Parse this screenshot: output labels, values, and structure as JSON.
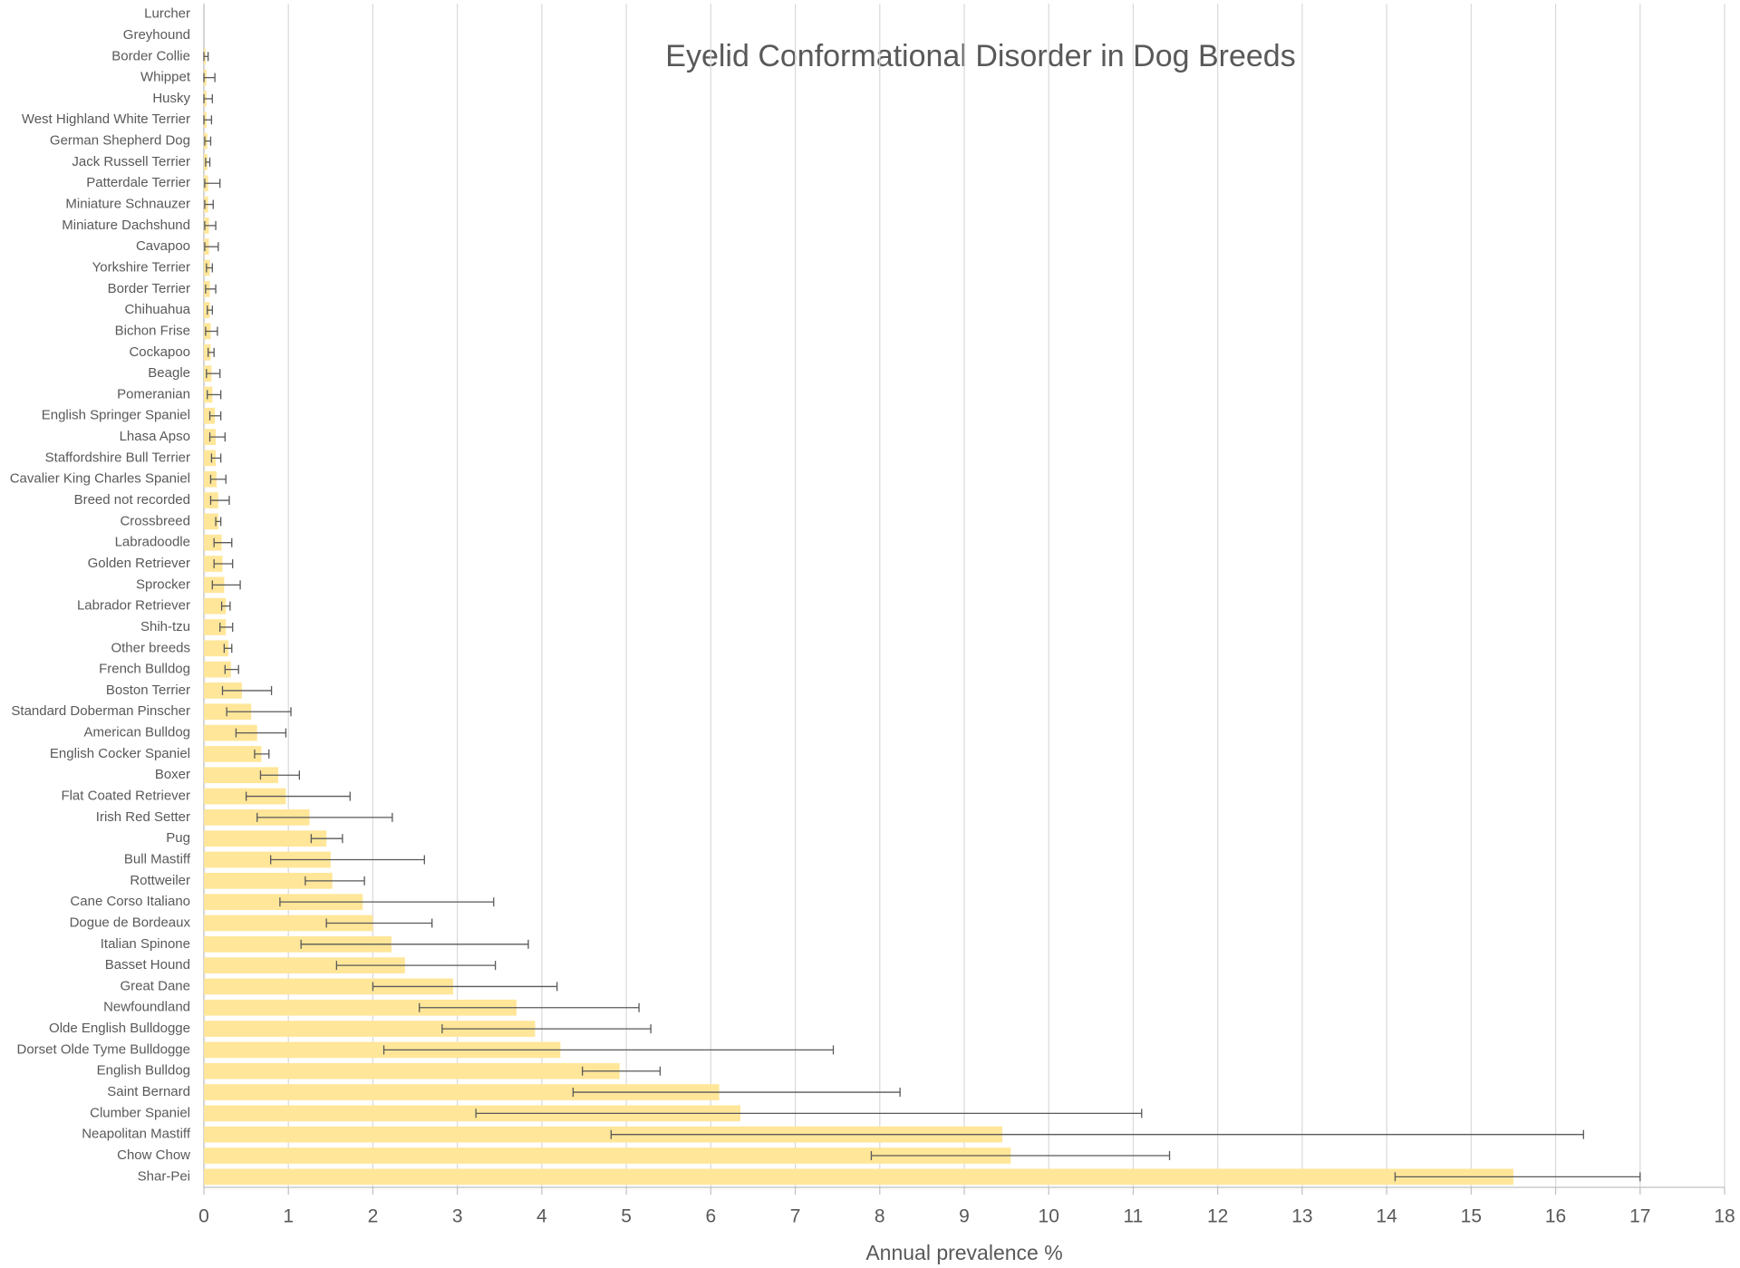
{
  "chart_data": {
    "type": "hbar",
    "title": "Eyelid Conformational Disorder in Dog Breeds",
    "x_label": "Annual prevalence %",
    "categories": [
      "Lurcher",
      "Greyhound",
      "Border Collie",
      "Whippet",
      "Husky",
      "West Highland White Terrier",
      "German Shepherd Dog",
      "Jack Russell Terrier",
      "Patterdale Terrier",
      "Miniature Schnauzer",
      "Miniature Dachshund",
      "Cavapoo",
      "Yorkshire Terrier",
      "Border Terrier",
      "Chihuahua",
      "Bichon Frise",
      "Cockapoo",
      "Beagle",
      "Pomeranian",
      "English Springer Spaniel",
      "Lhasa Apso",
      "Staffordshire Bull Terrier",
      "Cavalier King Charles Spaniel",
      "Breed not recorded",
      "Crossbreed",
      "Labradoodle",
      "Golden Retriever",
      "Sprocker",
      "Labrador Retriever",
      "Shih-tzu",
      "Other breeds",
      "French Bulldog",
      "Boston Terrier",
      "Standard Doberman Pinscher",
      "American Bulldog",
      "English Cocker Spaniel",
      "Boxer",
      "Flat Coated Retriever",
      "Irish Red Setter",
      "Pug",
      "Bull Mastiff",
      "Rottweiler",
      "Cane Corso Italiano",
      "Dogue de Bordeaux",
      "Italian Spinone",
      "Basset Hound",
      "Great Dane",
      "Newfoundland",
      "Olde English Bulldogge",
      "Dorset Olde Tyme Bulldogge",
      "English Bulldog",
      "Saint Bernard",
      "Clumber Spaniel",
      "Neapolitan Mastiff",
      "Chow Chow",
      "Shar-Pei"
    ],
    "values": [
      0,
      0,
      0.02,
      0.03,
      0.03,
      0.03,
      0.04,
      0.04,
      0.05,
      0.05,
      0.06,
      0.06,
      0.07,
      0.07,
      0.07,
      0.08,
      0.08,
      0.09,
      0.1,
      0.13,
      0.14,
      0.14,
      0.15,
      0.17,
      0.17,
      0.21,
      0.22,
      0.24,
      0.26,
      0.26,
      0.29,
      0.32,
      0.45,
      0.56,
      0.63,
      0.68,
      0.88,
      0.97,
      1.25,
      1.45,
      1.5,
      1.52,
      1.88,
      2.0,
      2.22,
      2.38,
      2.95,
      3.7,
      3.92,
      4.22,
      4.92,
      6.1,
      6.35,
      9.45,
      9.55,
      15.5
    ],
    "ci_lower": [
      0,
      0,
      0,
      0,
      0,
      0,
      0.01,
      0.02,
      0.01,
      0.01,
      0.01,
      0.01,
      0.03,
      0.02,
      0.04,
      0.02,
      0.05,
      0.03,
      0.04,
      0.07,
      0.07,
      0.09,
      0.08,
      0.08,
      0.14,
      0.12,
      0.12,
      0.1,
      0.21,
      0.19,
      0.24,
      0.25,
      0.22,
      0.27,
      0.38,
      0.6,
      0.67,
      0.5,
      0.63,
      1.27,
      0.79,
      1.2,
      0.9,
      1.45,
      1.15,
      1.57,
      2.0,
      2.55,
      2.82,
      2.13,
      4.48,
      4.37,
      3.22,
      4.82,
      7.9,
      14.1
    ],
    "ci_upper": [
      0,
      0,
      0.05,
      0.13,
      0.1,
      0.09,
      0.08,
      0.07,
      0.19,
      0.11,
      0.14,
      0.17,
      0.1,
      0.14,
      0.1,
      0.16,
      0.12,
      0.19,
      0.2,
      0.2,
      0.25,
      0.2,
      0.26,
      0.3,
      0.2,
      0.33,
      0.34,
      0.43,
      0.31,
      0.34,
      0.33,
      0.41,
      0.8,
      1.03,
      0.97,
      0.77,
      1.13,
      1.73,
      2.23,
      1.64,
      2.61,
      1.9,
      3.43,
      2.7,
      3.84,
      3.45,
      4.18,
      5.15,
      5.29,
      7.45,
      5.4,
      8.24,
      11.1,
      16.33,
      11.43,
      17.0
    ],
    "color": "#ffe699",
    "error_color": "#595959",
    "xlim": [
      0,
      18
    ],
    "xticks": [
      0,
      1,
      2,
      3,
      4,
      5,
      6,
      7,
      8,
      9,
      10,
      11,
      12,
      13,
      14,
      15,
      16,
      17,
      18
    ],
    "grid": true
  }
}
